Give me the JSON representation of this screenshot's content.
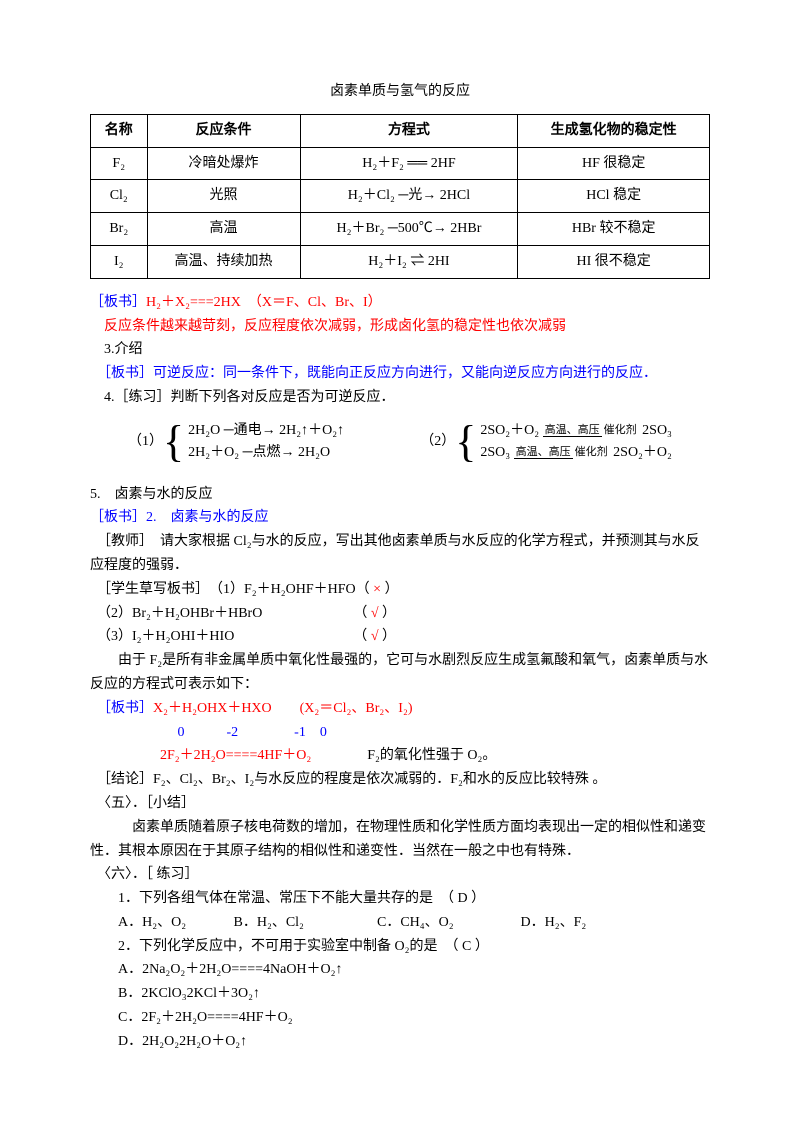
{
  "title": "卤素单质与氢气的反应",
  "table": {
    "headers": [
      "名称",
      "反应条件",
      "方程式",
      "生成氢化物的稳定性"
    ],
    "rows": [
      [
        "F₂",
        "冷暗处爆炸",
        "H₂＋F₂ ══ 2HF",
        "HF 很稳定"
      ],
      [
        "Cl₂",
        "光照",
        "H₂＋Cl₂ ─光→ 2HCl",
        "HCl 稳定"
      ],
      [
        "Br₂",
        "高温",
        "H₂＋Br₂ ─500℃→ 2HBr",
        "HBr 较不稳定"
      ],
      [
        "I₂",
        "高温、持续加热",
        "H₂＋I₂ ⇌ 2HI",
        "HI 很不稳定"
      ]
    ]
  },
  "p1_label": "［板书］",
  "p1_red": "H₂＋X₂===2HX　（X＝F、Cl、Br、I）",
  "p2_red": "　反应条件越来越苛刻，反应程度依次减弱，形成卤化氢的稳定性也依次减弱",
  "p3": "　3.介绍",
  "p4_label": "　［板书］",
  "p4_blue": "可逆反应：同一条件下，既能向正反应方向进行，又能向逆反应方向进行的反应．",
  "p5": "　4.［练习］判断下列各对反应是否为可逆反应．",
  "eq1_label": "（1）",
  "eq1_line1": "2H₂O ─通电→ 2H₂↑＋O₂↑",
  "eq1_line2": "2H₂＋O₂ ─点燃→ 2H₂O",
  "eq2_label": "（2）",
  "eq2_line1a": "2SO₂＋O₂ ",
  "eq2_cond_top": "高温、高压",
  "eq2_cond_bot": "催化剂",
  "eq2_line1b": " 2SO₃",
  "eq2_line2a": "2SO₃ ",
  "eq2_line2b": " 2SO₂＋O₂",
  "p6": "5.　卤素与水的反应",
  "p7_label": "［板书］",
  "p7_blue": "2.　卤素与水的反应",
  "p8": "　［教师］　请大家根据 Cl₂与水的反应，写出其他卤素单质与水反应的化学方程式，并预测其与水反应程度的强弱．",
  "p9a": "　［学生草写板书］　（1）F₂＋H₂OHF＋HFO（ ",
  "p9x": "×",
  "p9b": " ）",
  "p10a": "　（2）Br₂＋H₂OHBr＋HBrO　　　　　　　（ ",
  "p10x": "√",
  "p10b": " ）",
  "p11a": "　（3）I₂＋H₂OHI＋HIO　　　　　　　　　（ ",
  "p11x": "√",
  "p11b": " ）",
  "p12": "　　由于 F₂是所有非金属单质中氧化性最强的，它可与水剧烈反应生成氢氟酸和氧气，卤素单质与水反应的方程式可表示如下：",
  "p13_label": "　［板书］",
  "p13_red": "X₂＋H₂OHX＋HXO　　(X₂＝Cl₂、Br₂、I₂)",
  "p14_blue": "　　　　　　 0　　　-2　　　　-1　0",
  "p15_red": "　　　　　2F₂＋2H₂O====4HF＋O₂",
  "p15_black": "　　　　F₂的氧化性强于 O₂。",
  "p16": "　［结论］F₂、Cl₂、Br₂、I₂与水反应的程度是依次减弱的．F₂和水的反应比较特殊 。",
  "p17": "　〈五〉．［小结］",
  "p18": "　　　卤素单质随着原子核电荷数的增加，在物理性质和化学性质方面均表现出一定的相似性和递变性．其根本原因在于其原子结构的相似性和递变性．当然在一般之中也有特殊．",
  "p19": "　〈六〉．［ 练习］",
  "q1": "　　1．下列各组气体在常温、常压下不能大量共存的是　（ D ）",
  "q1a": "　　A．H₂、O₂",
  "q1b": "B．H₂、Cl₂",
  "q1c": "C．CH₄、O₂",
  "q1d": "D．H₂、F₂",
  "q2": "　　2．下列化学反应中，不可用于实验室中制备 O₂的是　（ C ）",
  "q2a": "　　A．2Na₂O₂＋2H₂O====4NaOH＋O₂↑",
  "q2b": "　　B．2KClO₃2KCl＋3O₂↑",
  "q2c": "　　C．2F₂＋2H₂O====4HF＋O₂",
  "q2d": "　　D．2H₂O₂2H₂O＋O₂↑"
}
